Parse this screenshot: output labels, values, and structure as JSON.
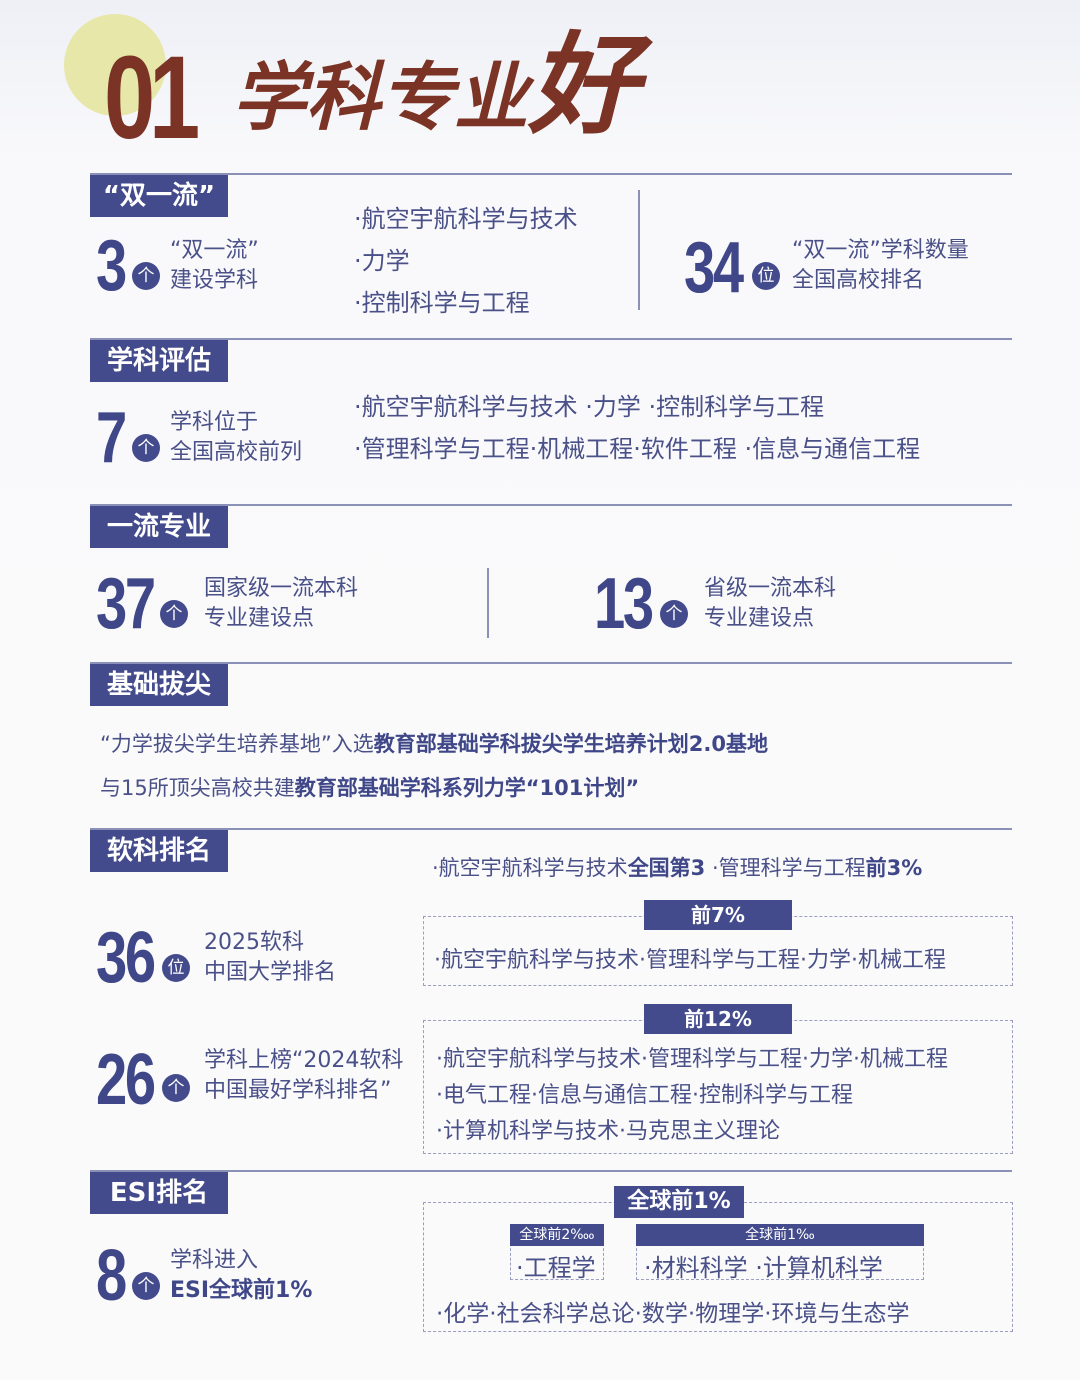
{
  "header": {
    "number": "01",
    "title_main": "学科专业",
    "title_big": "好"
  },
  "colors": {
    "navy": "#434b8c",
    "brown": "#7a3324",
    "accent_circle": "#e6e7a8"
  },
  "sections": {
    "double_first": {
      "tag": "“双一流”",
      "count": "3",
      "unit": "个",
      "label1": "“双一流”",
      "label2": "建设学科",
      "items": [
        "·航空宇航科学与技术",
        "·力学",
        "·控制科学与工程"
      ],
      "rank": "34",
      "rank_unit": "位",
      "rank_label1": "“双一流”学科数量",
      "rank_label2": "全国高校排名"
    },
    "evaluation": {
      "tag": "学科评估",
      "count": "7",
      "unit": "个",
      "label1": "学科位于",
      "label2": "全国高校前列",
      "line1": "·航空宇航科学与技术 ·力学 ·控制科学与工程",
      "line2": "·管理科学与工程·机械工程·软件工程 ·信息与通信工程"
    },
    "first_class_major": {
      "tag": "一流专业",
      "national": "37",
      "national_unit": "个",
      "national_label1": "国家级一流本科",
      "national_label2": "专业建设点",
      "provincial": "13",
      "provincial_unit": "个",
      "provincial_label1": "省级一流本科",
      "provincial_label2": "专业建设点"
    },
    "top_talent": {
      "tag": "基础拔尖",
      "line1_a": "“力学拔尖学生培养基地”入选",
      "line1_b": "教育部基础学科拔尖学生培养计划2.0基地",
      "line2_a": "与15所顶尖高校共建",
      "line2_b": "教育部基础学科系列力学“101计划”"
    },
    "soft_ranking": {
      "tag": "软科排名",
      "top_a": "·航空宇航科学与技术",
      "top_a_b": "全国第3",
      "top_b": " ·管理科学与工程",
      "top_b_b": "前3%",
      "rank1": "36",
      "rank1_unit": "位",
      "rank1_label1": "2025软科",
      "rank1_label2": "中国大学排名",
      "box1_head": "前7%",
      "box1_line": "·航空宇航科学与技术·管理科学与工程·力学·机械工程",
      "rank2": "26",
      "rank2_unit": "个",
      "rank2_label1": "学科上榜“2024软科",
      "rank2_label2": "中国最好学科排名”",
      "box2_head": "前12%",
      "box2_lines": [
        "·航空宇航科学与技术·管理科学与工程·力学·机械工程",
        "·电气工程·信息与通信工程·控制科学与工程",
        "·计算机科学与技术·马克思主义理论"
      ]
    },
    "esi": {
      "tag": "ESI排名",
      "count": "8",
      "unit": "个",
      "label1": "学科进入",
      "label2": "ESI全球前1%",
      "box_head": "全球前1%",
      "sub1_head": "全球前2‱",
      "sub1_item": "·工程学",
      "sub2_head": "全球前1‰",
      "sub2_item": "·材料科学 ·计算机科学",
      "bottom_line": "·化学·社会科学总论·数学·物理学·环境与生态学"
    }
  }
}
